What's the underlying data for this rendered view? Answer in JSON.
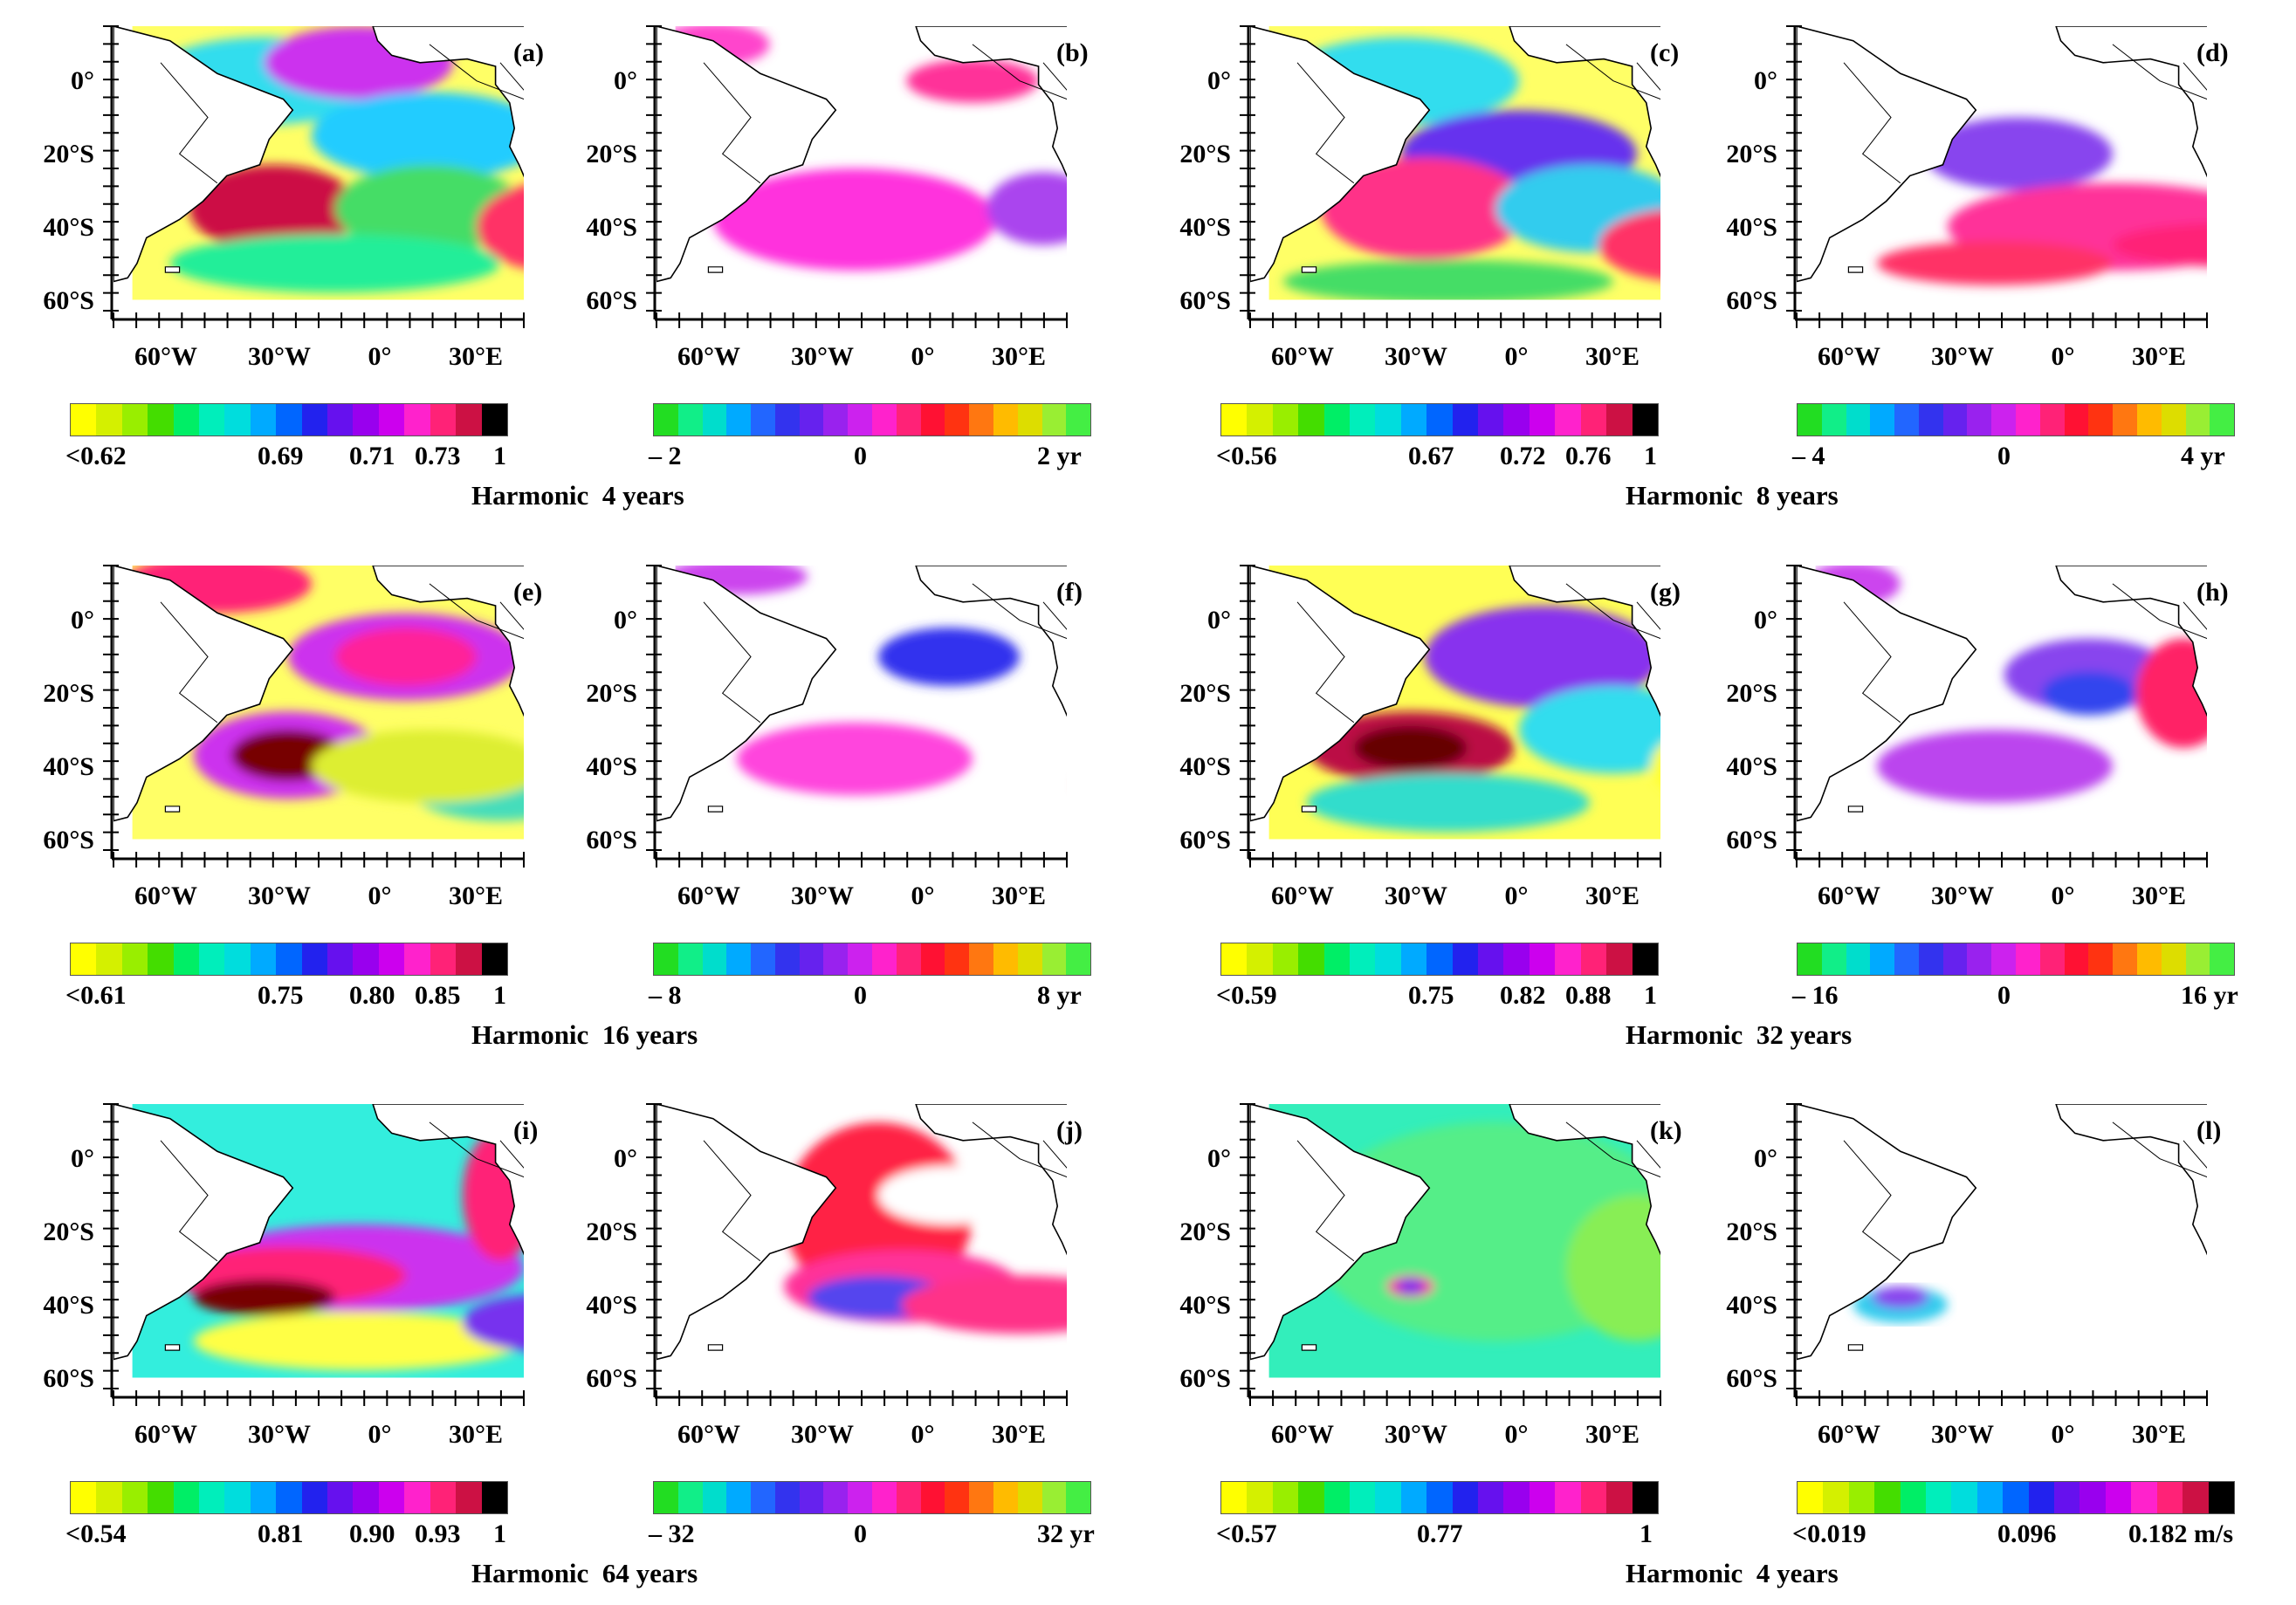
{
  "panels": [
    {
      "label": "(a)",
      "type": "coherence"
    },
    {
      "label": "(b)",
      "type": "phase"
    },
    {
      "label": "(c)",
      "type": "coherence"
    },
    {
      "label": "(d)",
      "type": "phase"
    },
    {
      "label": "(e)",
      "type": "coherence"
    },
    {
      "label": "(f)",
      "type": "phase"
    },
    {
      "label": "(g)",
      "type": "coherence"
    },
    {
      "label": "(h)",
      "type": "phase"
    },
    {
      "label": "(i)",
      "type": "coherence"
    },
    {
      "label": "(j)",
      "type": "phase"
    },
    {
      "label": "(k)",
      "type": "coherence"
    },
    {
      "label": "(l)",
      "type": "amplitude"
    }
  ],
  "axes": {
    "lat_ticks": [
      "0°",
      "20°S",
      "40°S",
      "60°S"
    ],
    "lon_ticks": [
      "60°W",
      "30°W",
      "0°",
      "30°E"
    ]
  },
  "colorbars": [
    {
      "labels": [
        "<0.62",
        "0.69",
        "0.71",
        "0.73",
        "1"
      ]
    },
    {
      "labels": [
        "– 2",
        "0",
        "2 yr"
      ]
    },
    {
      "labels": [
        "<0.56",
        "0.67",
        "0.72",
        "0.76",
        "1"
      ]
    },
    {
      "labels": [
        "– 4",
        "0",
        "4 yr"
      ]
    },
    {
      "labels": [
        "<0.61",
        "0.75",
        "0.80",
        "0.85",
        "1"
      ]
    },
    {
      "labels": [
        "– 8",
        "0",
        "8 yr"
      ]
    },
    {
      "labels": [
        "<0.59",
        "0.75",
        "0.82",
        "0.88",
        "1"
      ]
    },
    {
      "labels": [
        "– 16",
        "0",
        "16 yr"
      ]
    },
    {
      "labels": [
        "<0.54",
        "0.81",
        "0.90",
        "0.93",
        "1"
      ]
    },
    {
      "labels": [
        "– 32",
        "0",
        "32 yr"
      ]
    },
    {
      "labels": [
        "<0.57",
        "0.77",
        "1"
      ]
    },
    {
      "labels": [
        "<0.019",
        "0.096",
        "0.182 m/s"
      ]
    }
  ],
  "harmonic_titles": [
    {
      "word": "Harmonic",
      "period": "4 years"
    },
    {
      "word": "Harmonic",
      "period": "8 years"
    },
    {
      "word": "Harmonic",
      "period": "16 years"
    },
    {
      "word": "Harmonic",
      "period": "32 years"
    },
    {
      "word": "Harmonic",
      "period": "64 years"
    },
    {
      "word": "Harmonic",
      "period": "4 years"
    }
  ],
  "colors": {
    "coherence_scale": [
      "#ffff00",
      "#d4f000",
      "#99ee00",
      "#44dd00",
      "#00ee66",
      "#00eebb",
      "#00dddd",
      "#00aaff",
      "#0066ff",
      "#2222ee",
      "#6611ee",
      "#9900ee",
      "#cc00ee",
      "#ff22cc",
      "#ff2277",
      "#cc1144",
      "#000000"
    ],
    "phase_scale": [
      "#22dd22",
      "#11ee88",
      "#00ddcc",
      "#00aaff",
      "#2266ff",
      "#3333ee",
      "#6622ee",
      "#9922ee",
      "#cc22ee",
      "#ff22cc",
      "#ff2277",
      "#ff1133",
      "#ff3311",
      "#ff7711",
      "#ffbb00",
      "#dddd00",
      "#99ee33",
      "#44ee44"
    ],
    "amplitude_scale": [
      "#ffff00",
      "#d4f000",
      "#99ee00",
      "#44dd00",
      "#00ee66",
      "#00eebb",
      "#00dddd",
      "#00aaff",
      "#0066ff",
      "#2222ee",
      "#6611ee",
      "#9900ee",
      "#cc00ee",
      "#ff22cc",
      "#ff2277",
      "#cc1144",
      "#000000"
    ]
  }
}
